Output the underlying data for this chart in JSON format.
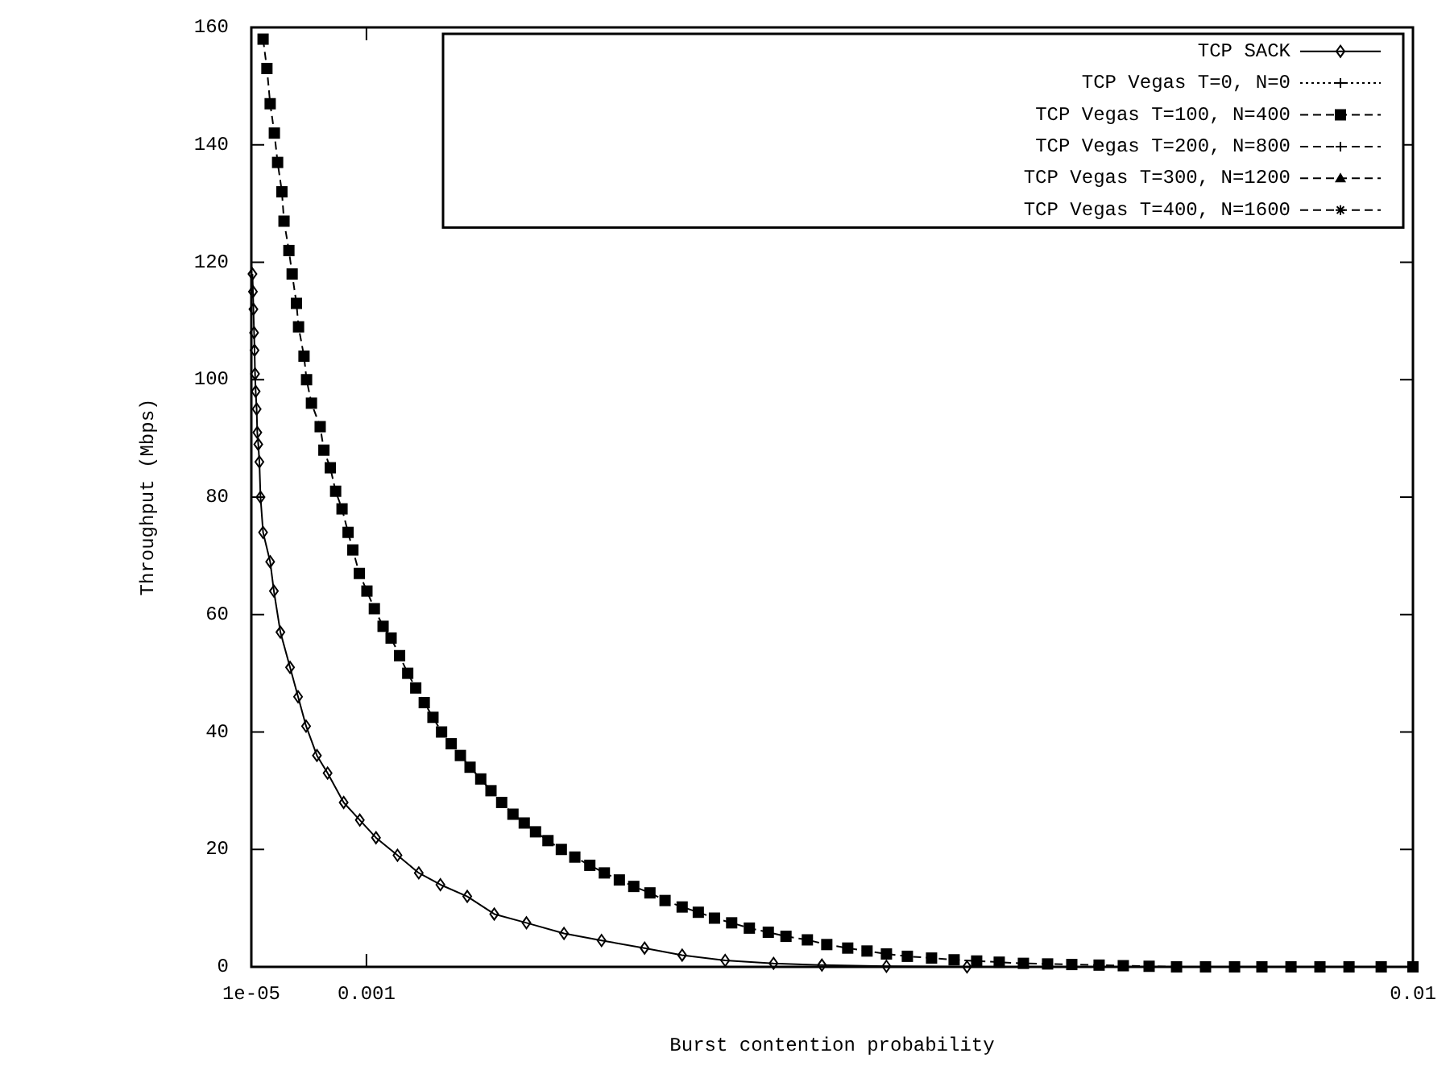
{
  "chart_data": {
    "type": "line",
    "xlabel": "Burst contention probability",
    "ylabel": "Throughput (Mbps)",
    "xlim": [
      1e-05,
      0.01
    ],
    "xticks": [
      {
        "value": 1e-05,
        "label": "1e-05"
      },
      0.001,
      0.01
    ],
    "ylim": [
      0,
      160
    ],
    "yticks": [
      0,
      20,
      40,
      60,
      80,
      100,
      120,
      140,
      160
    ],
    "grid": false,
    "legend": "top right",
    "series": [
      {
        "name": "TCP SACK",
        "color": "#000000",
        "marker": "diamond",
        "line_style": "solid",
        "x": [
          1.97e-05,
          2.39e-05,
          2.8e-05,
          3.36e-05,
          3.77e-05,
          4.19e-05,
          4.74e-05,
          5.57e-05,
          6.13e-05,
          6.96e-05,
          7.93e-05,
          8.9e-05,
          0.000111,
          0.000172,
          0.000204,
          0.00026,
          0.000343,
          0.000412,
          0.000481,
          0.000574,
          0.000666,
          0.000804,
          0.000943,
          0.001082,
          0.001267,
          0.00145,
          0.001636,
          0.001867,
          0.002099,
          0.002376,
          0.002699,
          0.003022,
          0.003392,
          0.003715,
          0.004085,
          0.004501,
          0.004917,
          0.005472,
          0.006165
        ],
        "values": [
          118,
          115,
          112,
          108,
          105,
          101,
          98,
          95,
          91,
          89,
          86,
          80,
          74,
          69,
          64,
          57,
          51,
          46,
          41,
          36,
          33,
          28,
          25,
          22,
          19,
          16,
          14,
          12,
          9,
          7.5,
          5.7,
          4.5,
          3.2,
          2,
          1.1,
          0.6,
          0.3,
          0.1,
          0
        ]
      },
      {
        "name": "TCP Vegas T=0, N=0",
        "color": "#000000",
        "marker": "cross",
        "line_style": "dotted",
        "values": [
          null
        ]
      },
      {
        "name": "TCP Vegas T=100, N=400",
        "color": "#000000",
        "marker": "square",
        "line_style": "dashed",
        "x": [
          0.000111,
          0.000144,
          0.000172,
          0.000208,
          0.000236,
          0.000273,
          0.000291,
          0.000333,
          0.000361,
          0.000398,
          0.000416,
          0.000463,
          0.000485,
          0.000527,
          0.000602,
          0.000634,
          0.000689,
          0.000735,
          0.00079,
          0.000842,
          0.000883,
          0.000939,
          0.001004,
          0.001068,
          0.001143,
          0.001212,
          0.001285,
          0.001355,
          0.001424,
          0.001497,
          0.001572,
          0.001646,
          0.001729,
          0.001808,
          0.001891,
          0.001983,
          0.002071,
          0.002163,
          0.00226,
          0.002357,
          0.002454,
          0.002561,
          0.002676,
          0.002792,
          0.002921,
          0.003046,
          0.003175,
          0.003299,
          0.003438,
          0.003568,
          0.003715,
          0.003854,
          0.003993,
          0.004141,
          0.004293,
          0.004456,
          0.004608,
          0.004792,
          0.004959,
          0.005139,
          0.005305,
          0.005472,
          0.005652,
          0.00586,
          0.006054,
          0.006248,
          0.006442,
          0.00665,
          0.006858,
          0.007066,
          0.007301,
          0.007509,
          0.007731,
          0.007967,
          0.008216,
          0.008466,
          0.008701,
          0.008951,
          0.0092,
          0.00945,
          0.009727,
          0.01
        ],
        "values": [
          158,
          153,
          147,
          142,
          137,
          132,
          127,
          122,
          118,
          113,
          109,
          104,
          100,
          96,
          92,
          88,
          85,
          81,
          78,
          74,
          71,
          67,
          64,
          61,
          58,
          56,
          53,
          50,
          47.5,
          45,
          42.5,
          40,
          38,
          36,
          34,
          32,
          30,
          28,
          26,
          24.5,
          23,
          21.5,
          20,
          18.7,
          17.3,
          16,
          14.8,
          13.7,
          12.6,
          11.3,
          10.2,
          9.3,
          8.3,
          7.5,
          6.6,
          5.9,
          5.2,
          4.6,
          3.8,
          3.2,
          2.7,
          2.2,
          1.8,
          1.5,
          1.2,
          1,
          0.8,
          0.6,
          0.5,
          0.4,
          0.3,
          0.2,
          0.1,
          0,
          0,
          0,
          0,
          0,
          0,
          0,
          0,
          0
        ]
      },
      {
        "name": "TCP Vegas T=200, N=800",
        "color": "#000000",
        "marker": "cross",
        "line_style": "dashed",
        "values": [
          null
        ]
      },
      {
        "name": "TCP Vegas T=300, N=1200",
        "color": "#000000",
        "marker": "triangle",
        "line_style": "dashed",
        "values": [
          null
        ]
      },
      {
        "name": "TCP Vegas T=400, N=1600",
        "color": "#000000",
        "marker": "star",
        "line_style": "dashed",
        "values": [
          null
        ]
      }
    ]
  }
}
